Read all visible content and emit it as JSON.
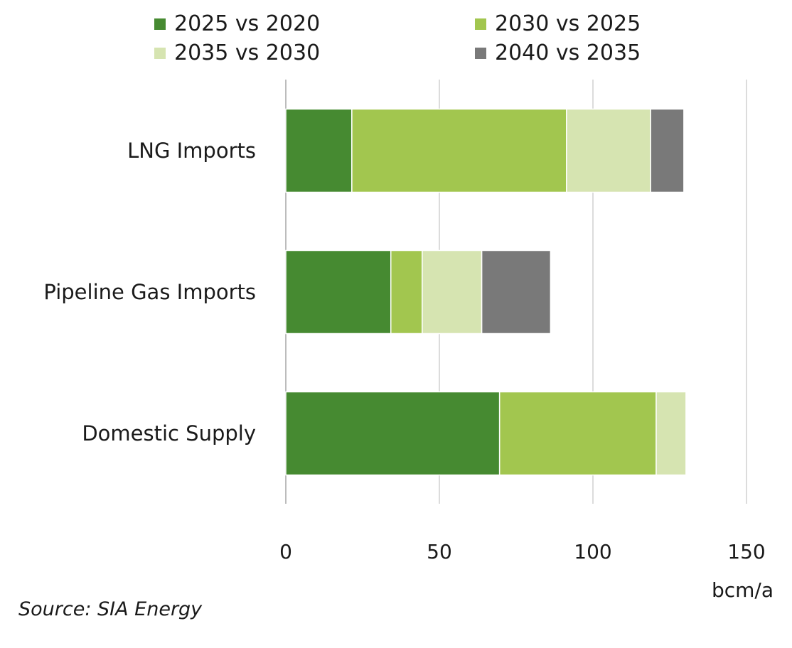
{
  "chart_data": {
    "type": "bar",
    "orientation": "horizontal",
    "stacked": true,
    "title": "",
    "xlabel": "bcm/a",
    "ylabel": "",
    "xlim": [
      0,
      150
    ],
    "x_ticks": [
      0,
      50,
      100,
      150
    ],
    "grid": true,
    "legend_position": "top",
    "categories": [
      "LNG Imports",
      "Pipeline Gas Imports",
      "Domestic Supply"
    ],
    "series": [
      {
        "name": "2025 vs 2020",
        "color": "#468A31",
        "values": [
          21.5,
          34.2,
          69.6
        ]
      },
      {
        "name": "2030 vs 2025",
        "color": "#A2C64F",
        "values": [
          69.9,
          10.2,
          51.0
        ]
      },
      {
        "name": "2035 vs 2030",
        "color": "#D6E4B1",
        "values": [
          27.4,
          19.4,
          9.7
        ]
      },
      {
        "name": "2040 vs 2035",
        "color": "#797979",
        "values": [
          10.8,
          22.4,
          0
        ]
      }
    ],
    "source": "Source: SIA Energy"
  }
}
